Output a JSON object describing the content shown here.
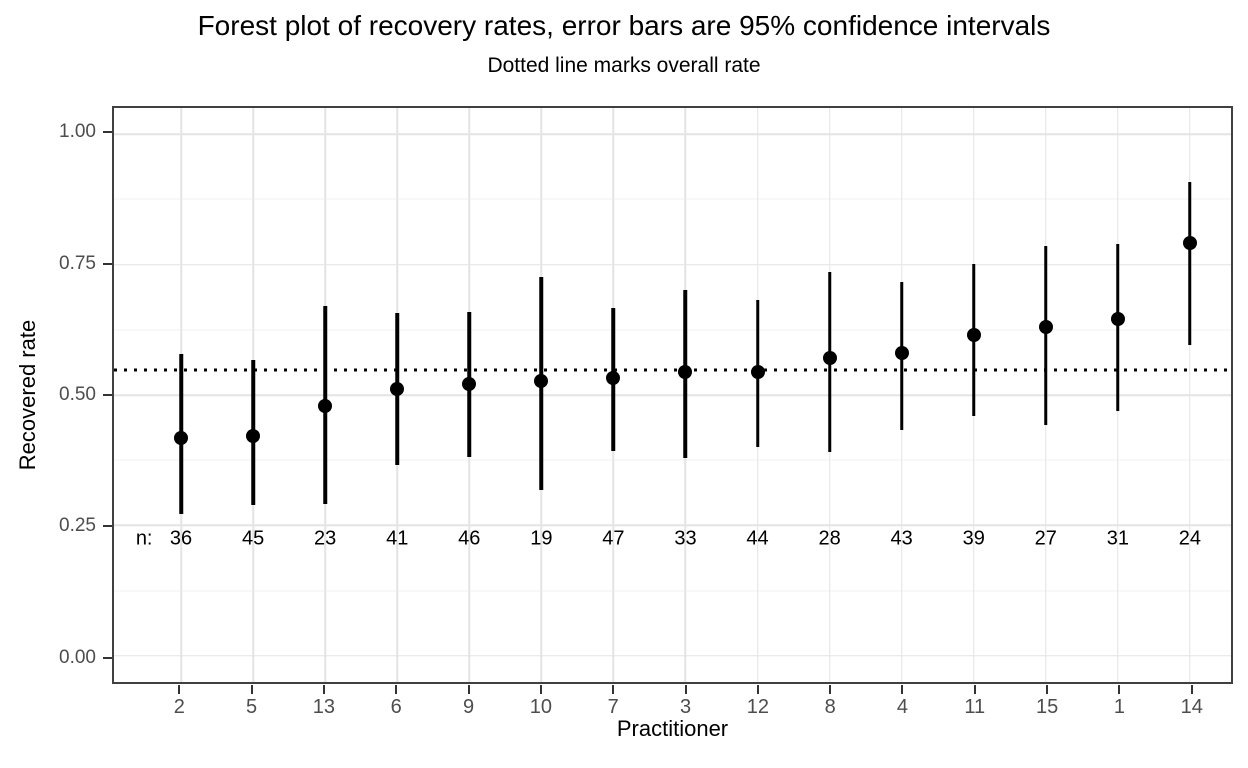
{
  "header": {
    "title": "Forest plot of recovery rates, error bars are 95% confidence intervals",
    "subtitle": "Dotted line marks overall rate"
  },
  "chart_data": {
    "type": "scatter",
    "subtype": "forest-plot-pointrange",
    "title": "Forest plot of recovery rates, error bars are 95% confidence intervals",
    "subtitle": "Dotted line marks overall rate",
    "xlabel": "Practitioner",
    "ylabel": "Recovered rate",
    "ylim": [
      -0.05,
      1.05
    ],
    "grid": "on",
    "legend": "none",
    "y_ticks": [
      {
        "label": "1.00",
        "value": 1.0
      },
      {
        "label": "0.75",
        "value": 0.75
      },
      {
        "label": "0.50",
        "value": 0.5
      },
      {
        "label": "0.25",
        "value": 0.25
      },
      {
        "label": "0.00",
        "value": 0.0
      }
    ],
    "y_minor_gridlines": [
      0.875,
      0.625,
      0.375,
      0.125
    ],
    "overall_rate": 0.547,
    "n_prefix": "n:",
    "n_label_y": 0.225,
    "points": [
      {
        "practitioner": "2",
        "n": 36,
        "rate": 0.417,
        "ci_low": 0.271,
        "ci_high": 0.578
      },
      {
        "practitioner": "5",
        "n": 45,
        "rate": 0.422,
        "ci_low": 0.29,
        "ci_high": 0.567
      },
      {
        "practitioner": "13",
        "n": 23,
        "rate": 0.478,
        "ci_low": 0.292,
        "ci_high": 0.67
      },
      {
        "practitioner": "6",
        "n": 41,
        "rate": 0.512,
        "ci_low": 0.365,
        "ci_high": 0.658
      },
      {
        "practitioner": "9",
        "n": 46,
        "rate": 0.522,
        "ci_low": 0.381,
        "ci_high": 0.659
      },
      {
        "practitioner": "10",
        "n": 19,
        "rate": 0.526,
        "ci_low": 0.317,
        "ci_high": 0.727
      },
      {
        "practitioner": "7",
        "n": 47,
        "rate": 0.532,
        "ci_low": 0.392,
        "ci_high": 0.667
      },
      {
        "practitioner": "3",
        "n": 33,
        "rate": 0.545,
        "ci_low": 0.38,
        "ci_high": 0.701
      },
      {
        "practitioner": "12",
        "n": 44,
        "rate": 0.545,
        "ci_low": 0.401,
        "ci_high": 0.683
      },
      {
        "practitioner": "8",
        "n": 28,
        "rate": 0.571,
        "ci_low": 0.391,
        "ci_high": 0.735
      },
      {
        "practitioner": "4",
        "n": 43,
        "rate": 0.581,
        "ci_low": 0.433,
        "ci_high": 0.716
      },
      {
        "practitioner": "11",
        "n": 39,
        "rate": 0.615,
        "ci_low": 0.459,
        "ci_high": 0.751
      },
      {
        "practitioner": "15",
        "n": 27,
        "rate": 0.63,
        "ci_low": 0.443,
        "ci_high": 0.785
      },
      {
        "practitioner": "1",
        "n": 31,
        "rate": 0.645,
        "ci_low": 0.469,
        "ci_high": 0.789
      },
      {
        "practitioner": "14",
        "n": 24,
        "rate": 0.792,
        "ci_low": 0.596,
        "ci_high": 0.908
      }
    ],
    "colors": {
      "data": "#000000",
      "panel_border": "#404040",
      "grid_major": "#e4e4e4",
      "grid_minor": "#f2f2f2",
      "tick_text": "#4d4d4d",
      "background": "#ffffff"
    }
  }
}
